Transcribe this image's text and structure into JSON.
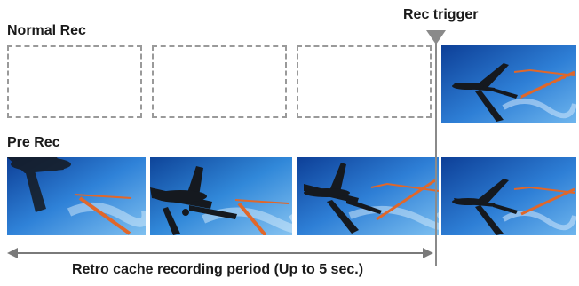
{
  "labels": {
    "normal_rec": "Normal Rec",
    "pre_rec": "Pre Rec",
    "rec_trigger": "Rec trigger",
    "retro_period": "Retro cache recording period (Up to 5 sec.)"
  },
  "normal_rec": {
    "frames": [
      "empty",
      "empty",
      "empty",
      "recorded"
    ]
  },
  "pre_rec": {
    "frames": [
      "recorded",
      "recorded",
      "recorded",
      "recorded"
    ]
  },
  "colors": {
    "sky_light": "#4ea6e8",
    "sky_dark": "#0d3f97",
    "airplane": "#15191f",
    "crane": "#e0672a",
    "dashed_border": "#9a9a9a",
    "trigger_line": "#8a8a8a",
    "arrow": "#7a7a7a"
  },
  "icons": {
    "trigger_marker": "triangle-down-icon",
    "period_arrow": "double-headed-arrow-icon"
  }
}
